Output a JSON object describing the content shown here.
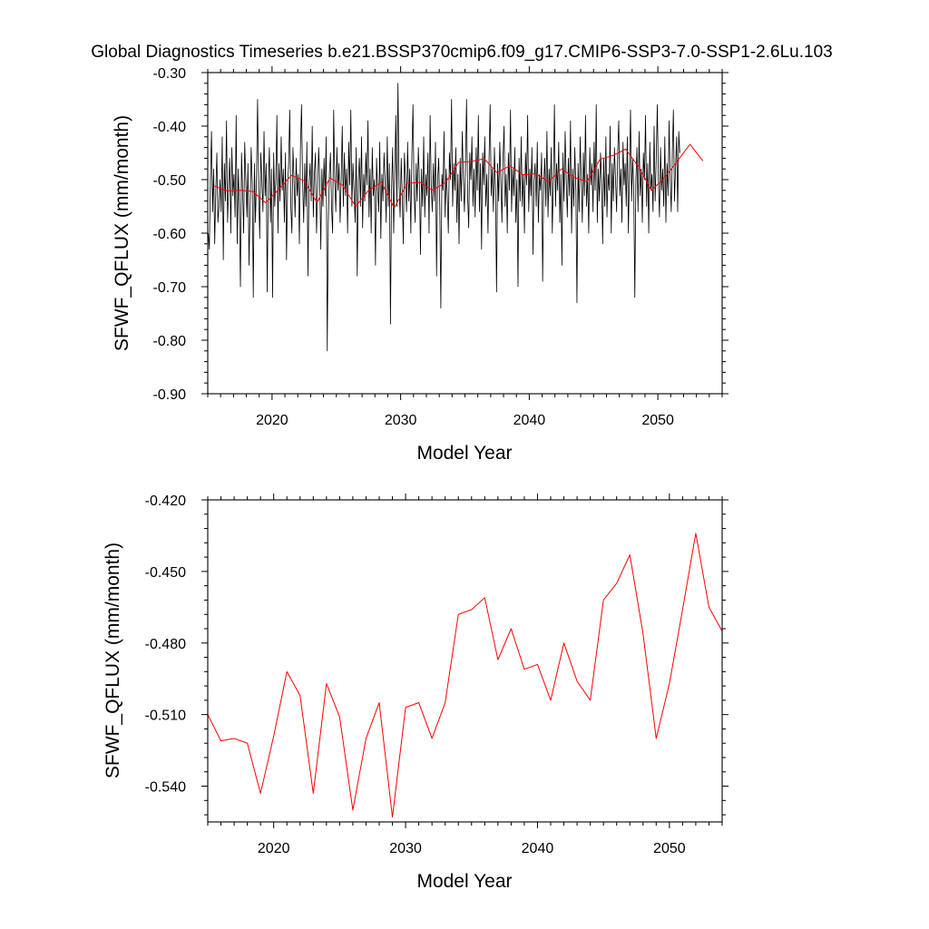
{
  "figure_title": "Global Diagnostics Timeseries b.e21.BSSP370cmip6.f09_g17.CMIP6-SSP3-7.0-SSP1-2.6Lu.103",
  "colors": {
    "monthly": "#000000",
    "annual": "#ff0000"
  },
  "chart_data": [
    {
      "type": "line",
      "title": "Global Diagnostics Timeseries b.e21.BSSP370cmip6.f09_g17.CMIP6-SSP3-7.0-SSP1-2.6Lu.103",
      "xlabel": "Model Year",
      "ylabel": "SFWF_QFLUX (mm/month)",
      "xlim": [
        2015,
        2055
      ],
      "ylim": [
        -0.9,
        -0.3
      ],
      "xticks": [
        2020,
        2030,
        2040,
        2050
      ],
      "xtick_labels": [
        "2020",
        "2030",
        "2040",
        "2050"
      ],
      "yticks": [
        -0.9,
        -0.8,
        -0.7,
        -0.6,
        -0.5,
        -0.4,
        -0.3
      ],
      "ytick_labels": [
        "-0.90",
        "-0.80",
        "-0.70",
        "-0.60",
        "-0.50",
        "-0.40",
        "-0.30"
      ],
      "grid": false,
      "series": [
        {
          "color": "#000000",
          "x_start": 2015.0417,
          "x_step": 0.0833333,
          "values": [
            -0.6,
            -0.63,
            -0.5,
            -0.41,
            -0.56,
            -0.48,
            -0.62,
            -0.52,
            -0.45,
            -0.58,
            -0.55,
            -0.5,
            -0.56,
            -0.42,
            -0.65,
            -0.47,
            -0.54,
            -0.39,
            -0.58,
            -0.51,
            -0.46,
            -0.6,
            -0.44,
            -0.53,
            -0.49,
            -0.57,
            -0.38,
            -0.62,
            -0.48,
            -0.55,
            -0.7,
            -0.45,
            -0.52,
            -0.6,
            -0.43,
            -0.5,
            -0.57,
            -0.47,
            -0.66,
            -0.55,
            -0.44,
            -0.51,
            -0.72,
            -0.47,
            -0.58,
            -0.49,
            -0.35,
            -0.52,
            -0.61,
            -0.45,
            -0.5,
            -0.56,
            -0.41,
            -0.53,
            -0.47,
            -0.71,
            -0.51,
            -0.44,
            -0.58,
            -0.48,
            -0.72,
            -0.45,
            -0.55,
            -0.5,
            -0.38,
            -0.6,
            -0.47,
            -0.54,
            -0.42,
            -0.52,
            -0.48,
            -0.58,
            -0.45,
            -0.65,
            -0.51,
            -0.47,
            -0.37,
            -0.55,
            -0.6,
            -0.44,
            -0.5,
            -0.57,
            -0.46,
            -0.53,
            -0.49,
            -0.62,
            -0.44,
            -0.36,
            -0.5,
            -0.58,
            -0.47,
            -0.55,
            -0.43,
            -0.68,
            -0.51,
            -0.47,
            -0.54,
            -0.4,
            -0.57,
            -0.49,
            -0.45,
            -0.6,
            -0.52,
            -0.44,
            -0.5,
            -0.63,
            -0.48,
            -0.55,
            -0.46,
            -0.53,
            -0.42,
            -0.82,
            -0.58,
            -0.49,
            -0.45,
            -0.55,
            -0.6,
            -0.37,
            -0.5,
            -0.56,
            -0.44,
            -0.52,
            -0.47,
            -0.58,
            -0.5,
            -0.4,
            -0.55,
            -0.45,
            -0.53,
            -0.48,
            -0.6,
            -0.43,
            -0.51,
            -0.37,
            -0.55,
            -0.47,
            -0.52,
            -0.58,
            -0.44,
            -0.68,
            -0.5,
            -0.46,
            -0.55,
            -0.42,
            -0.59,
            -0.49,
            -0.54,
            -0.45,
            -0.51,
            -0.39,
            -0.57,
            -0.48,
            -0.6,
            -0.44,
            -0.53,
            -0.5,
            -0.66,
            -0.46,
            -0.52,
            -0.56,
            -0.43,
            -0.61,
            -0.49,
            -0.54,
            -0.45,
            -0.5,
            -0.58,
            -0.42,
            -0.55,
            -0.47,
            -0.77,
            -0.52,
            -0.44,
            -0.6,
            -0.49,
            -0.38,
            -0.55,
            -0.32,
            -0.51,
            -0.57,
            -0.46,
            -0.53,
            -0.62,
            -0.45,
            -0.5,
            -0.56,
            -0.43,
            -0.54,
            -0.48,
            -0.6,
            -0.45,
            -0.36,
            -0.52,
            -0.58,
            -0.47,
            -0.54,
            -0.44,
            -0.5,
            -0.64,
            -0.48,
            -0.55,
            -0.42,
            -0.57,
            -0.49,
            -0.53,
            -0.45,
            -0.6,
            -0.38,
            -0.51,
            -0.56,
            -0.47,
            -0.54,
            -0.43,
            -0.68,
            -0.5,
            -0.46,
            -0.55,
            -0.74,
            -0.49,
            -0.52,
            -0.41,
            -0.57,
            -0.48,
            -0.53,
            -0.6,
            -0.45,
            -0.5,
            -0.35,
            -0.55,
            -0.47,
            -0.52,
            -0.44,
            -0.58,
            -0.49,
            -0.62,
            -0.46,
            -0.54,
            -0.41,
            -0.5,
            -0.56,
            -0.47,
            -0.35,
            -0.53,
            -0.59,
            -0.45,
            -0.5,
            -0.42,
            -0.55,
            -0.48,
            -0.57,
            -0.44,
            -0.52,
            -0.38,
            -0.56,
            -0.47,
            -0.63,
            -0.45,
            -0.51,
            -0.42,
            -0.55,
            -0.49,
            -0.6,
            -0.46,
            -0.36,
            -0.53,
            -0.48,
            -0.56,
            -0.44,
            -0.52,
            -0.71,
            -0.47,
            -0.54,
            -0.43,
            -0.5,
            -0.58,
            -0.46,
            -0.4,
            -0.55,
            -0.49,
            -0.6,
            -0.45,
            -0.52,
            -0.37,
            -0.56,
            -0.48,
            -0.53,
            -0.44,
            -0.58,
            -0.5,
            -0.7,
            -0.46,
            -0.54,
            -0.42,
            -0.55,
            -0.49,
            -0.6,
            -0.45,
            -0.51,
            -0.38,
            -0.56,
            -0.48,
            -0.53,
            -0.44,
            -0.64,
            -0.5,
            -0.47,
            -0.55,
            -0.43,
            -0.58,
            -0.49,
            -0.52,
            -0.45,
            -0.69,
            -0.51,
            -0.46,
            -0.55,
            -0.41,
            -0.57,
            -0.48,
            -0.53,
            -0.44,
            -0.6,
            -0.5,
            -0.36,
            -0.55,
            -0.47,
            -0.52,
            -0.43,
            -0.58,
            -0.49,
            -0.66,
            -0.45,
            -0.54,
            -0.41,
            -0.5,
            -0.57,
            -0.46,
            -0.53,
            -0.39,
            -0.6,
            -0.48,
            -0.55,
            -0.44,
            -0.52,
            -0.73,
            -0.47,
            -0.56,
            -0.42,
            -0.5,
            -0.58,
            -0.45,
            -0.53,
            -0.38,
            -0.55,
            -0.49,
            -0.6,
            -0.44,
            -0.51,
            -0.47,
            -0.56,
            -0.43,
            -0.52,
            -0.36,
            -0.58,
            -0.48,
            -0.54,
            -0.45,
            -0.5,
            -0.62,
            -0.46,
            -0.55,
            -0.42,
            -0.57,
            -0.49,
            -0.52,
            -0.4,
            -0.6,
            -0.47,
            -0.54,
            -0.44,
            -0.5,
            -0.56,
            -0.45,
            -0.39,
            -0.53,
            -0.48,
            -0.58,
            -0.43,
            -0.51,
            -0.47,
            -0.55,
            -0.42,
            -0.6,
            -0.49,
            -0.37,
            -0.54,
            -0.46,
            -0.52,
            -0.72,
            -0.5,
            -0.44,
            -0.56,
            -0.41,
            -0.53,
            -0.48,
            -0.58,
            -0.45,
            -0.5,
            -0.38,
            -0.55,
            -0.47,
            -0.6,
            -0.43,
            -0.52,
            -0.49,
            -0.56,
            -0.4,
            -0.54,
            -0.46,
            -0.36,
            -0.5,
            -0.57,
            -0.44,
            -0.52,
            -0.48,
            -0.55,
            -0.42,
            -0.58,
            -0.47,
            -0.53,
            -0.39,
            -0.5,
            -0.56,
            -0.45,
            -0.37,
            -0.54,
            -0.48,
            -0.42,
            -0.56,
            -0.41,
            -0.45
          ]
        },
        {
          "color": "#ff0000",
          "x": [
            2015.5,
            2016.5,
            2017.5,
            2018.5,
            2019.5,
            2020.5,
            2021.5,
            2022.5,
            2023.5,
            2024.5,
            2025.5,
            2026.5,
            2027.5,
            2028.5,
            2029.5,
            2030.5,
            2031.5,
            2032.5,
            2033.5,
            2034.5,
            2035.5,
            2036.5,
            2037.5,
            2038.5,
            2039.5,
            2040.5,
            2041.5,
            2042.5,
            2043.5,
            2044.5,
            2045.5,
            2046.5,
            2047.5,
            2048.5,
            2049.5,
            2050.5,
            2051.5,
            2052.5,
            2053.5
          ],
          "values": [
            -0.512,
            -0.521,
            -0.52,
            -0.522,
            -0.543,
            -0.519,
            -0.492,
            -0.502,
            -0.543,
            -0.497,
            -0.511,
            -0.55,
            -0.52,
            -0.505,
            -0.553,
            -0.507,
            -0.505,
            -0.52,
            -0.505,
            -0.468,
            -0.466,
            -0.461,
            -0.487,
            -0.474,
            -0.491,
            -0.489,
            -0.504,
            -0.48,
            -0.496,
            -0.504,
            -0.462,
            -0.455,
            -0.443,
            -0.476,
            -0.52,
            -0.497,
            -0.466,
            -0.434,
            -0.465
          ]
        }
      ]
    },
    {
      "type": "line",
      "title": "",
      "xlabel": "Model Year",
      "ylabel": "SFWF_QFLUX (mm/month)",
      "xlim": [
        2015,
        2054
      ],
      "ylim": [
        -0.555,
        -0.42
      ],
      "xticks": [
        2020,
        2030,
        2040,
        2050
      ],
      "xtick_labels": [
        "2020",
        "2030",
        "2040",
        "2050"
      ],
      "yticks": [
        -0.54,
        -0.51,
        -0.48,
        -0.45,
        -0.42
      ],
      "ytick_labels": [
        "-0.540",
        "-0.510",
        "-0.480",
        "-0.450",
        "-0.420"
      ],
      "grid": false,
      "series": [
        {
          "color": "#ff0000",
          "x": [
            2015,
            2016,
            2017,
            2018,
            2019,
            2020,
            2021,
            2022,
            2023,
            2024,
            2025,
            2026,
            2027,
            2028,
            2029,
            2030,
            2031,
            2032,
            2033,
            2034,
            2035,
            2036,
            2037,
            2038,
            2039,
            2040,
            2041,
            2042,
            2043,
            2044,
            2045,
            2046,
            2047,
            2048,
            2049,
            2050,
            2051,
            2052,
            2053,
            2054
          ],
          "values": [
            -0.51,
            -0.521,
            -0.52,
            -0.522,
            -0.543,
            -0.519,
            -0.492,
            -0.502,
            -0.543,
            -0.497,
            -0.511,
            -0.55,
            -0.52,
            -0.505,
            -0.553,
            -0.507,
            -0.505,
            -0.52,
            -0.505,
            -0.468,
            -0.466,
            -0.461,
            -0.487,
            -0.474,
            -0.491,
            -0.489,
            -0.504,
            -0.48,
            -0.496,
            -0.504,
            -0.462,
            -0.455,
            -0.443,
            -0.476,
            -0.52,
            -0.497,
            -0.466,
            -0.434,
            -0.465,
            -0.475
          ]
        }
      ]
    }
  ]
}
